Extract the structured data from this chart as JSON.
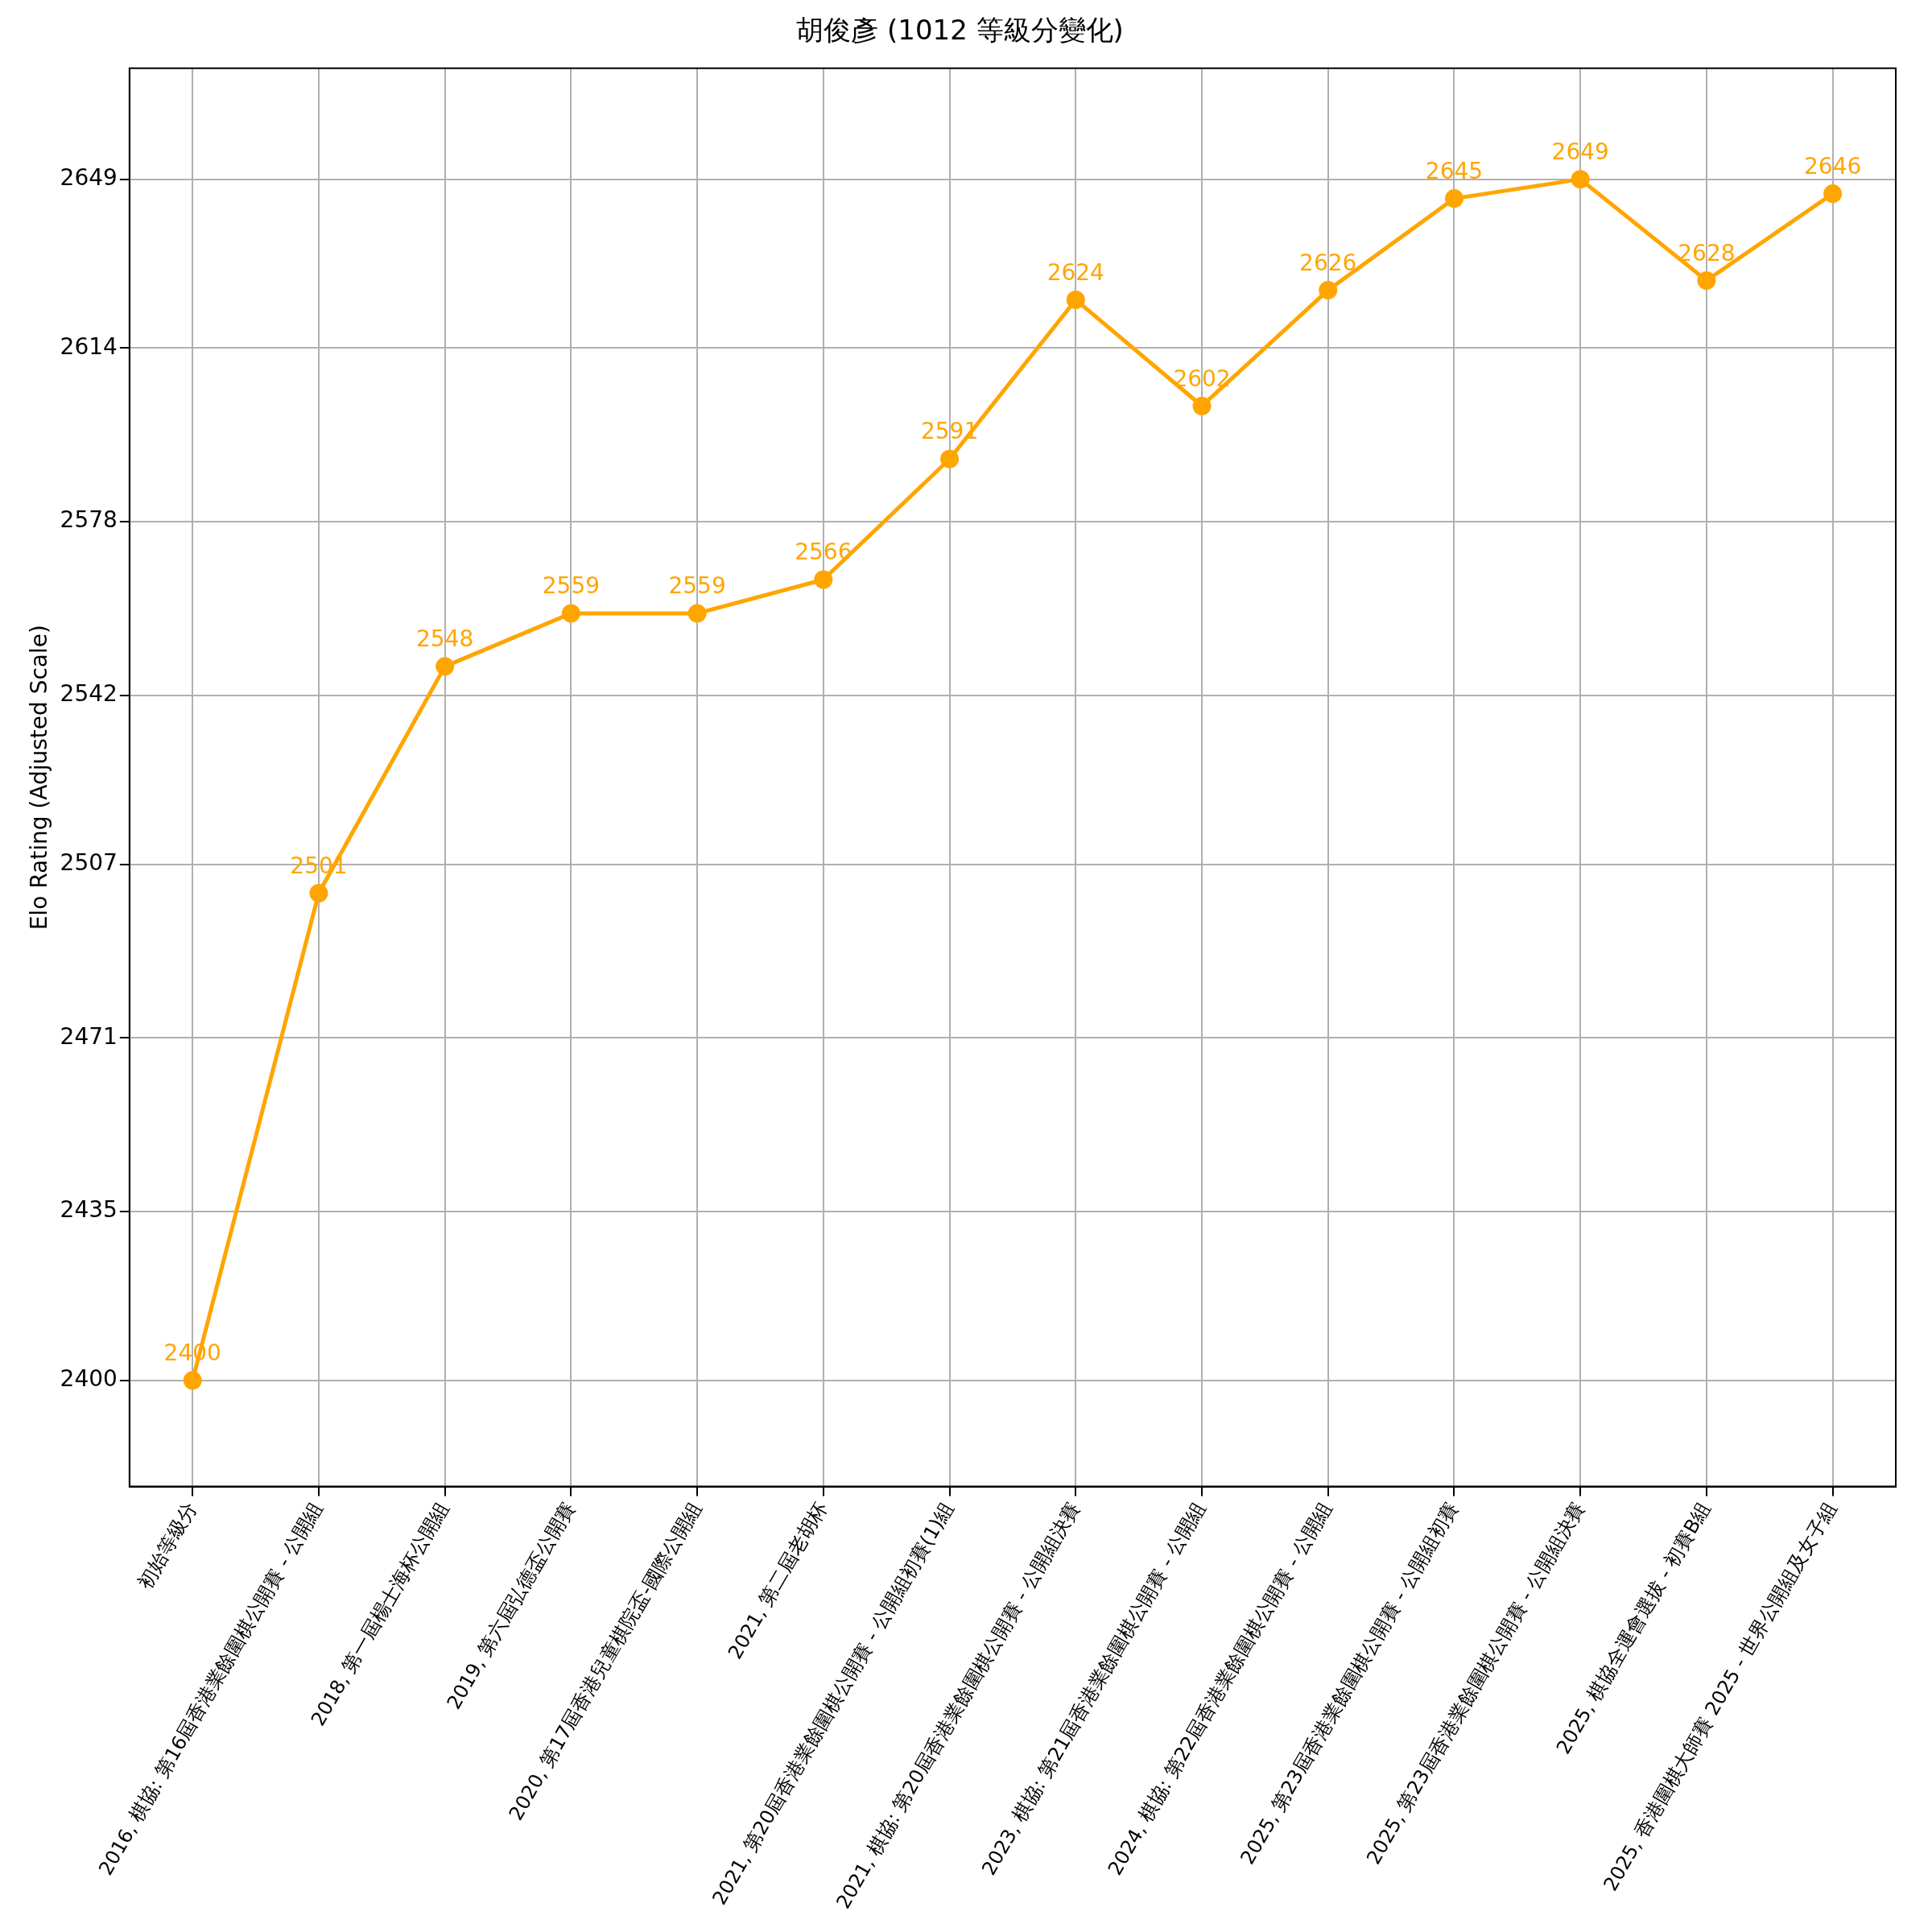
{
  "chart_data": {
    "type": "line",
    "title": "胡俊彥 (1012 等級分變化)",
    "ylabel": "Elo Rating (Adjusted Scale)",
    "categories": [
      "初始等級分",
      "2016, 棋協: 第16屆香港業餘圍棋公開賽 - 公開組",
      "2018, 第一屆楊士海杯公開組",
      "2019, 第六屆弘德盃公開賽",
      "2020, 第17屆香港兒童棋院盃-國際公開組",
      "2021, 第二屆老胡杯",
      "2021, 第20屆香港業餘圍棋公開賽 - 公開組初賽(1)組",
      "2021, 棋協: 第20屆香港業餘圍棋公開賽 - 公開組決賽",
      "2023, 棋協: 第21屆香港業餘圍棋公開賽 - 公開組",
      "2024, 棋協: 第22屆香港業餘圍棋公開賽 - 公開組",
      "2025, 第23屆香港業餘圍棋公開賽 - 公開組初賽",
      "2025, 第23屆香港業餘圍棋公開賽 - 公開組決賽",
      "2025, 棋協全運會選拔 - 初賽B組",
      "2025, 香港圍棋大師賽 2025 - 世界公開組及女子組"
    ],
    "series": [
      {
        "color": "#ffa500",
        "values": [
          2400,
          2501,
          2548,
          2559,
          2559,
          2566,
          2591,
          2624,
          2602,
          2626,
          2645,
          2649,
          2628,
          2646
        ]
      }
    ],
    "ylim": [
      2378,
      2672
    ],
    "yticks": [
      2400,
      2435,
      2471,
      2507,
      2542,
      2578,
      2614,
      2649
    ],
    "grid": true,
    "marker": "circle",
    "line_style": "solid",
    "data_labels": true,
    "legend": false
  }
}
